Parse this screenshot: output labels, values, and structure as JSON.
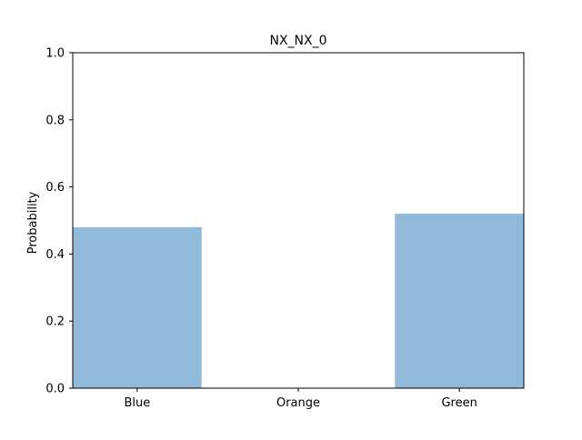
{
  "chart_data": {
    "type": "bar",
    "title": "NX_NX_0",
    "xlabel": "",
    "ylabel": "Probability",
    "categories": [
      "Blue",
      "Orange",
      "Green"
    ],
    "values": [
      0.48,
      0.0,
      0.52
    ],
    "ylim": [
      0,
      1.0
    ],
    "yticks": [
      "0.0",
      "0.2",
      "0.4",
      "0.6",
      "0.8",
      "1.0"
    ],
    "bar_color": "#8fbad9",
    "grid": false,
    "legend": "none"
  }
}
